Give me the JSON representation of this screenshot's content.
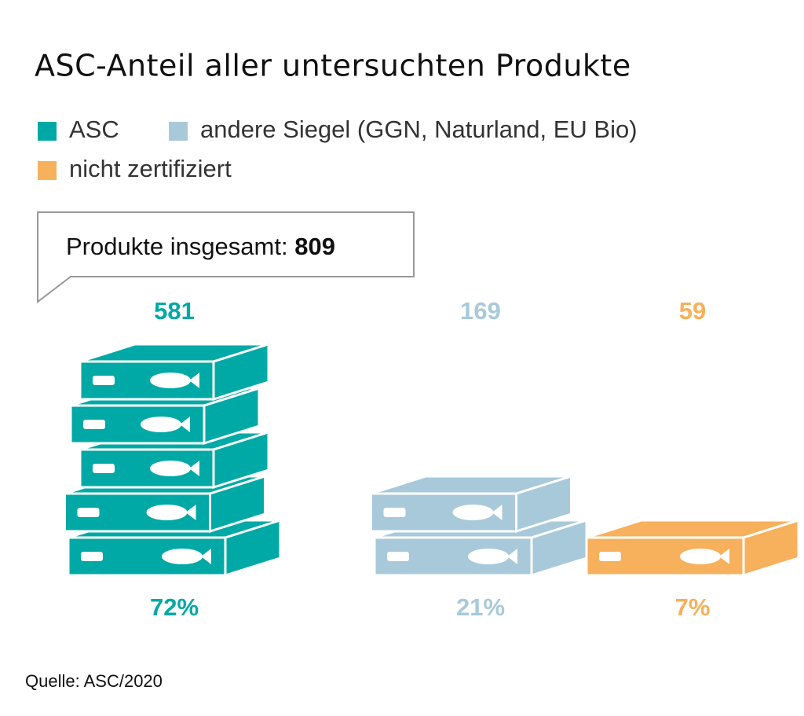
{
  "chart_data": {
    "type": "pictogram",
    "title": "ASC-Anteil aller untersuchten Produkte",
    "categories": [
      "ASC",
      "andere Siegel (GGN, Naturland, EU Bio)",
      "nicht zertifiziert"
    ],
    "colors": [
      "#00a9a5",
      "#a8c9da",
      "#f7b05b"
    ],
    "total_label": "Produkte insgesamt:",
    "total": 809,
    "values": [
      581,
      169,
      59
    ],
    "percents": [
      72,
      21,
      7
    ],
    "percent_labels": [
      "72%",
      "21%",
      "7%"
    ],
    "source": "Quelle: ASC/2020"
  }
}
